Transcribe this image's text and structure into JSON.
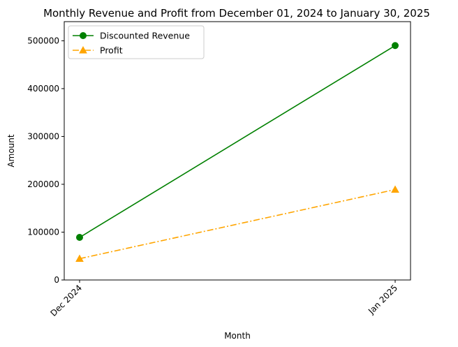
{
  "chart_data": {
    "type": "line",
    "title": "Monthly Revenue and Profit from December 01, 2024 to January 30, 2025",
    "xlabel": "Month",
    "ylabel": "Amount",
    "categories": [
      "Dec 2024",
      "Jan 2025"
    ],
    "ylim": [
      0,
      540000
    ],
    "yticks": [
      0,
      100000,
      200000,
      300000,
      400000,
      500000
    ],
    "ytick_labels": [
      "0",
      "100000",
      "200000",
      "300000",
      "400000",
      "500000"
    ],
    "grid": false,
    "legend_position": "upper-left",
    "series": [
      {
        "name": "Discounted Revenue",
        "values": [
          89000,
          490000
        ],
        "color": "#008000",
        "marker": "circle",
        "line_style": "solid"
      },
      {
        "name": "Profit",
        "values": [
          44500,
          189000
        ],
        "color": "#ffa500",
        "marker": "triangle-up",
        "line_style": "dash-dot"
      }
    ]
  }
}
